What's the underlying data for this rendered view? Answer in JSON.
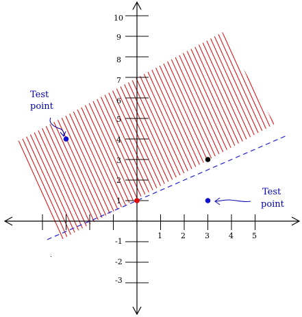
{
  "annotations": {
    "left_line1": "Test",
    "left_line2": "point",
    "right_line1": "Test",
    "right_line2": "point"
  },
  "axes": {
    "x_tick_labels": [
      "1",
      "2",
      "3",
      "4",
      "5"
    ],
    "y_tick_labels_positive": [
      "1",
      "2",
      "3",
      "4",
      "5",
      "6",
      "7",
      "8",
      "9",
      "10"
    ],
    "y_tick_labels_negative": [
      "-1",
      "-2",
      "-3"
    ]
  },
  "chart_data": {
    "type": "scatter",
    "title": "",
    "xlabel": "",
    "ylabel": "",
    "boundary_line": {
      "slope": 0.5,
      "intercept": 1,
      "style": "dashed",
      "color": "#2020d0"
    },
    "shaded_region": "above boundary line",
    "shade_color": "#e00000",
    "points": [
      {
        "x": 0,
        "y": 1,
        "color": "#e00000"
      },
      {
        "x": 3,
        "y": 3,
        "color": "#000000"
      },
      {
        "x": -3,
        "y": 4,
        "color": "#1010d0"
      },
      {
        "x": 3,
        "y": 1,
        "color": "#1010d0"
      }
    ],
    "xlim": [
      -6,
      7
    ],
    "ylim": [
      -4,
      11
    ],
    "grid": false
  },
  "colors": {
    "axis": "#000000",
    "hatch": "#e00000",
    "boundary": "#2020d0",
    "annotation": "#0000b0"
  }
}
